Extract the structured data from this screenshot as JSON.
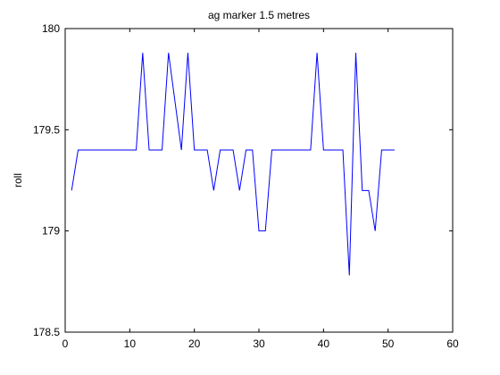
{
  "chart_data": {
    "type": "line",
    "title": "ag marker 1.5 metres",
    "xlabel": "",
    "ylabel": "roll",
    "xlim": [
      0,
      60
    ],
    "ylim": [
      178.5,
      180
    ],
    "grid": false,
    "x_ticks": [
      0,
      10,
      20,
      30,
      40,
      50,
      60
    ],
    "y_ticks": [
      178.5,
      179,
      179.5,
      180
    ],
    "x_tick_labels": [
      "0",
      "10",
      "20",
      "30",
      "40",
      "50",
      "60"
    ],
    "y_tick_labels": [
      "178.5",
      "179",
      "179.5",
      "180"
    ],
    "series": [
      {
        "name": "roll",
        "color": "#0000ff",
        "x": [
          1,
          2,
          3,
          4,
          5,
          6,
          7,
          8,
          9,
          10,
          11,
          12,
          13,
          14,
          15,
          16,
          17,
          18,
          19,
          20,
          21,
          22,
          23,
          24,
          25,
          26,
          27,
          28,
          29,
          30,
          31,
          32,
          33,
          34,
          35,
          36,
          37,
          38,
          39,
          40,
          41,
          42,
          43,
          44,
          45,
          46,
          47,
          48,
          49,
          50,
          51
        ],
        "y": [
          179.2,
          179.4,
          179.4,
          179.4,
          179.4,
          179.4,
          179.4,
          179.4,
          179.4,
          179.4,
          179.4,
          179.88,
          179.4,
          179.4,
          179.4,
          179.88,
          179.64,
          179.4,
          179.88,
          179.4,
          179.4,
          179.4,
          179.2,
          179.4,
          179.4,
          179.4,
          179.2,
          179.4,
          179.4,
          179.0,
          179.0,
          179.4,
          179.4,
          179.4,
          179.4,
          179.4,
          179.4,
          179.4,
          179.88,
          179.4,
          179.4,
          179.4,
          179.4,
          178.78,
          179.88,
          179.2,
          179.2,
          179.0,
          179.4,
          179.4,
          179.4
        ]
      }
    ]
  }
}
